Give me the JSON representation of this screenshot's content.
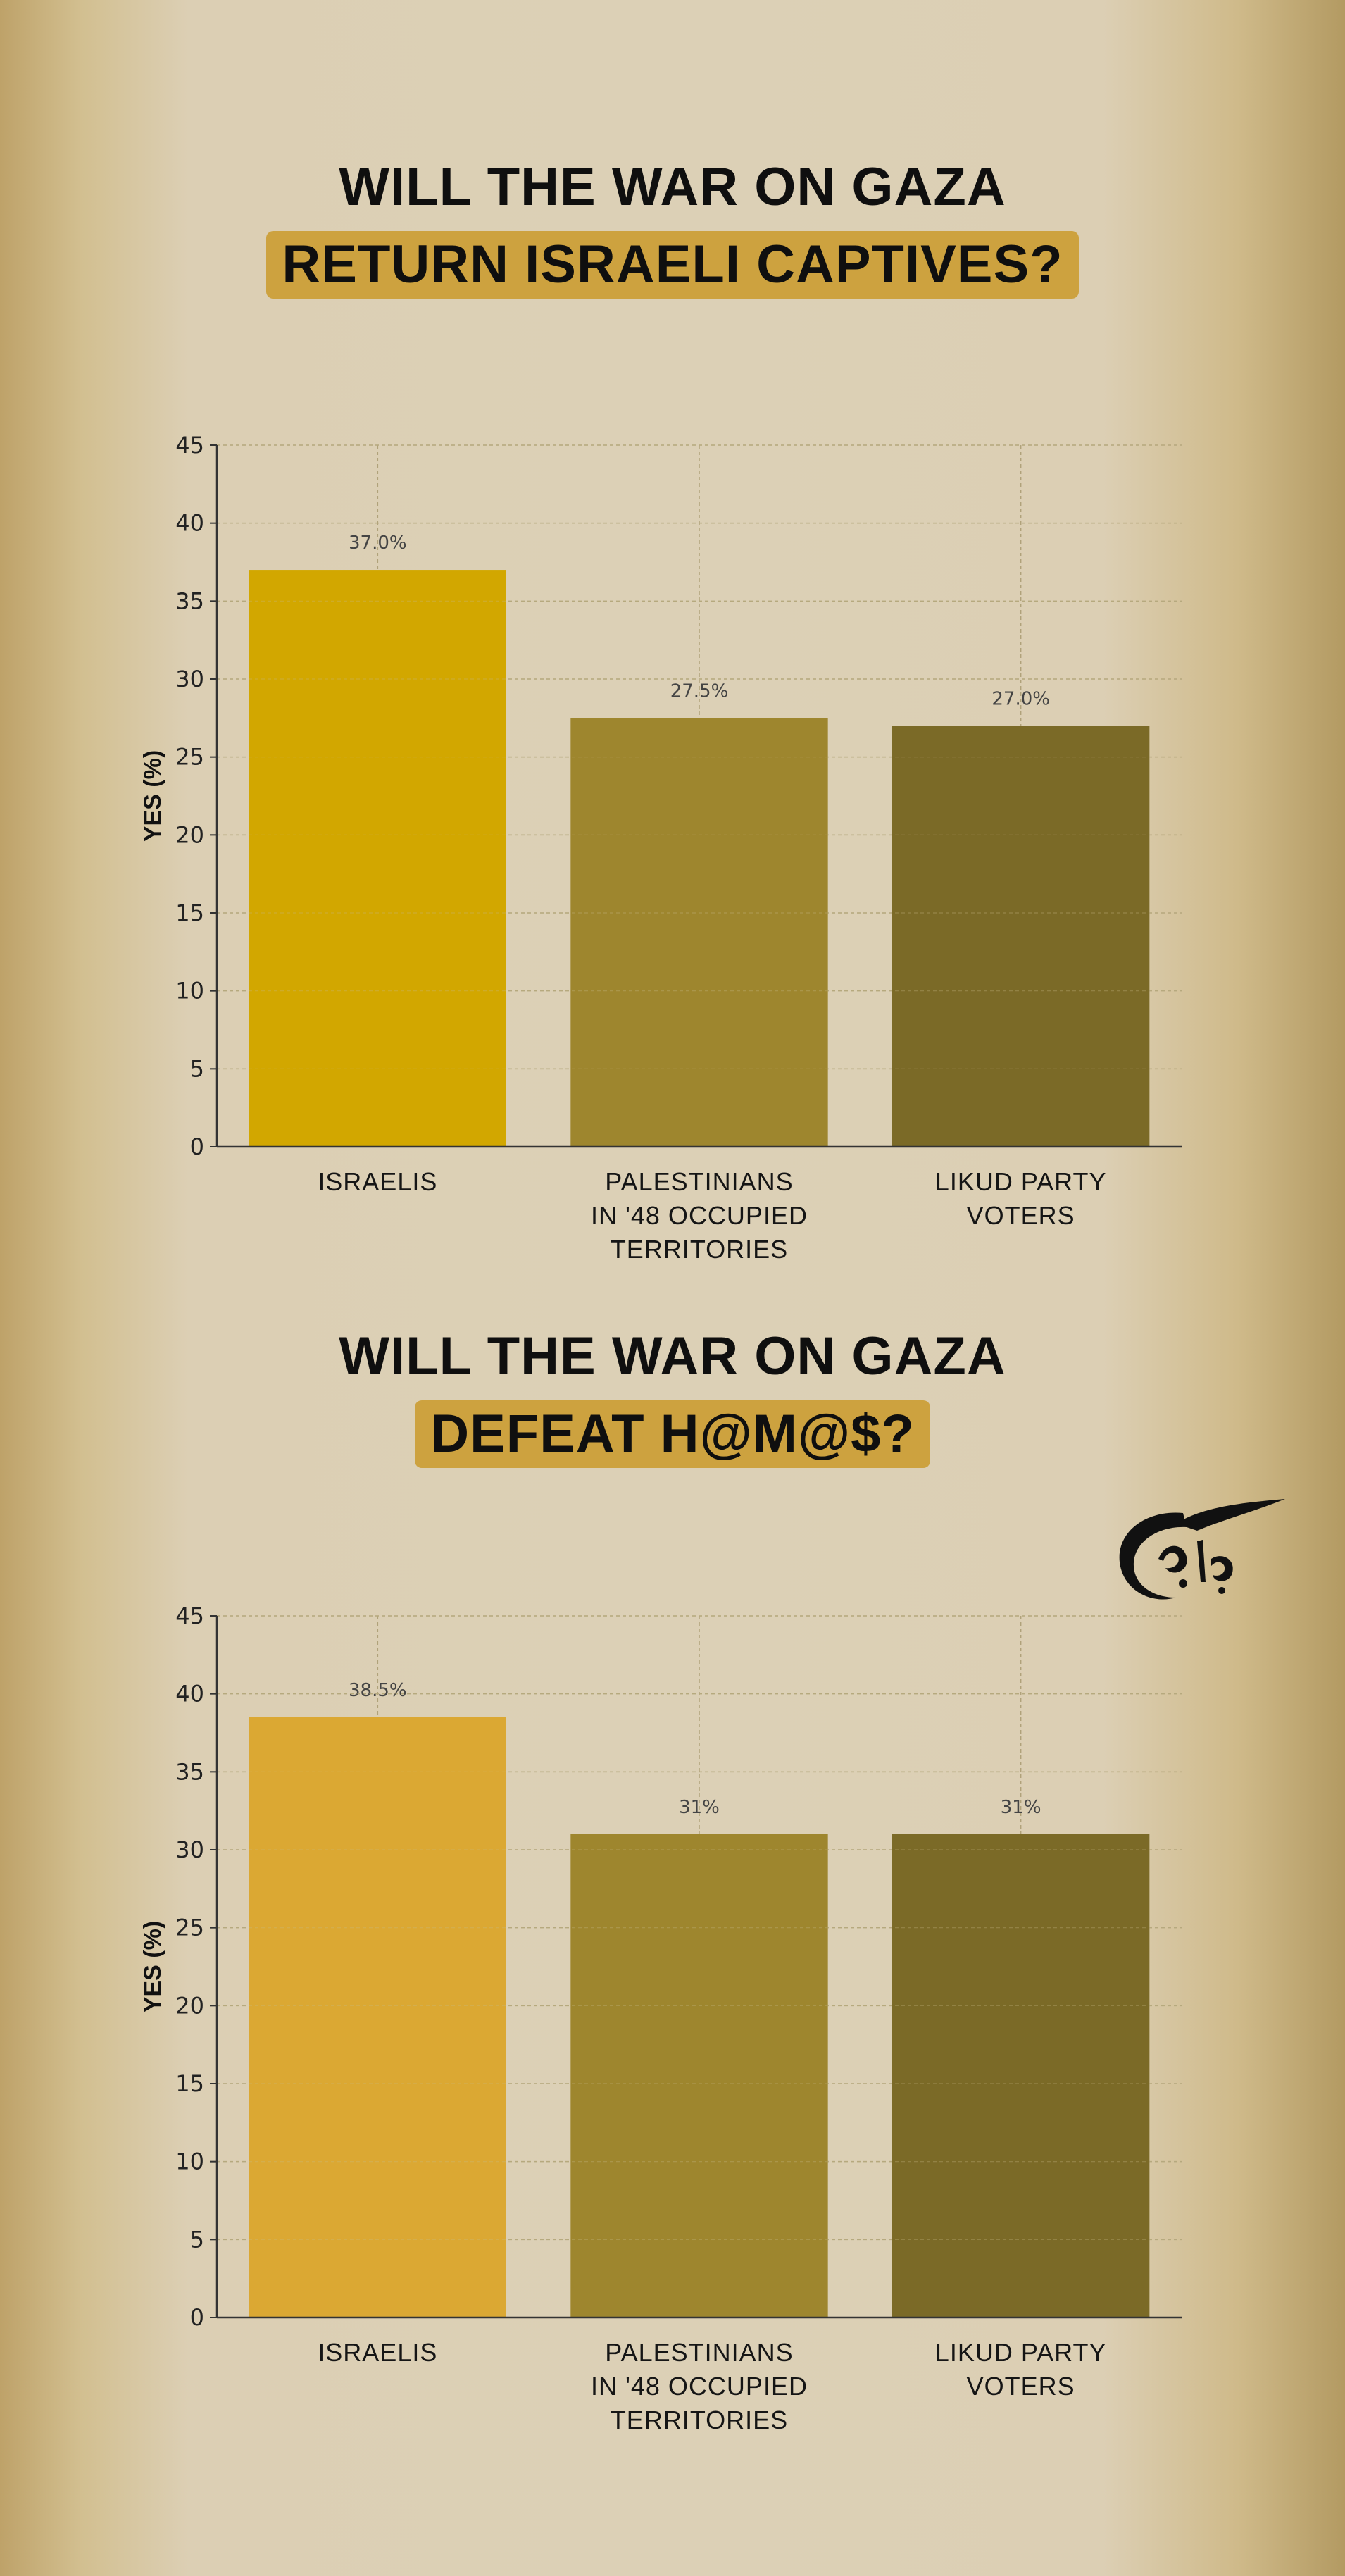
{
  "colors": {
    "highlight": "#cda23f",
    "israelis_1": "#d2a700",
    "israelis_2": "#dba833",
    "palestinians": "#9e862e",
    "likud": "#7b6a27",
    "axis": "#333333",
    "grid": "#b0a27a"
  },
  "heading1": {
    "line1": "WILL THE WAR ON GAZA",
    "line2": "RETURN ISRAELI CAPTIVES?"
  },
  "heading2": {
    "line1": "WILL THE WAR ON GAZA",
    "line2": "DEFEAT H@M@$?"
  },
  "logo": {
    "icon": "al-mayadeen-logo-icon"
  },
  "chart_data": [
    {
      "type": "bar",
      "title": "",
      "xlabel": "",
      "ylabel": "YES (%)",
      "ylim": [
        0,
        45
      ],
      "yticks": [
        0,
        5,
        10,
        15,
        20,
        25,
        30,
        35,
        40,
        45
      ],
      "grid": true,
      "categories": [
        [
          "ISRAELIS"
        ],
        [
          "PALESTINIANS",
          "IN '48 OCCUPIED",
          "TERRITORIES"
        ],
        [
          "LIKUD PARTY",
          "VOTERS"
        ]
      ],
      "values": [
        37.0,
        27.5,
        27.0
      ],
      "data_labels": [
        "37.0%",
        "27.5%",
        "27.0%"
      ],
      "bar_colors": [
        "#d2a700",
        "#9e862e",
        "#7b6a27"
      ]
    },
    {
      "type": "bar",
      "title": "",
      "xlabel": "",
      "ylabel": "YES (%)",
      "ylim": [
        0,
        45
      ],
      "yticks": [
        0,
        5,
        10,
        15,
        20,
        25,
        30,
        35,
        40,
        45
      ],
      "grid": true,
      "categories": [
        [
          "ISRAELIS"
        ],
        [
          "PALESTINIANS",
          "IN '48 OCCUPIED",
          "TERRITORIES"
        ],
        [
          "LIKUD PARTY",
          "VOTERS"
        ]
      ],
      "values": [
        38.5,
        31,
        31
      ],
      "data_labels": [
        "38.5%",
        "31%",
        "31%"
      ],
      "bar_colors": [
        "#dba833",
        "#9e862e",
        "#7b6a27"
      ]
    }
  ]
}
